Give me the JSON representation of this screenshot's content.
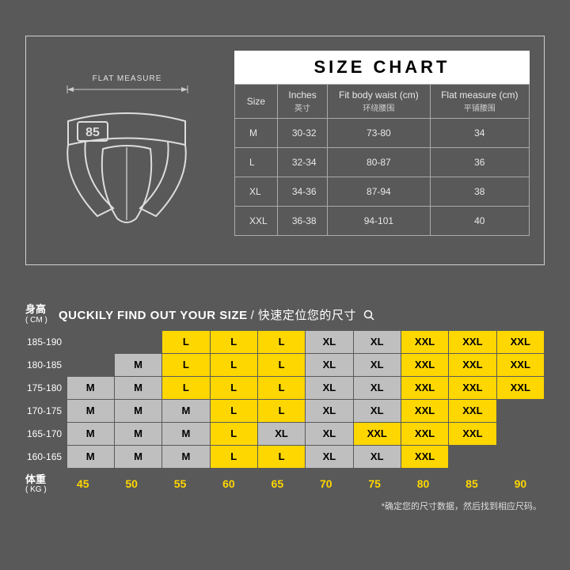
{
  "sizeChart": {
    "title": "SIZE CHART",
    "flatMeasureLabel": "FLAT  MEASURE",
    "productBadge": "85",
    "columns": [
      {
        "label": "Size",
        "sub": ""
      },
      {
        "label": "Inches",
        "sub": "英寸"
      },
      {
        "label": "Fit body waist (cm)",
        "sub": "环绕腰围"
      },
      {
        "label": "Flat measure (cm)",
        "sub": "平铺腰围"
      }
    ],
    "rows": [
      {
        "size": "M",
        "inches": "30-32",
        "waist": "73-80",
        "flat": "34"
      },
      {
        "size": "L",
        "inches": "32-34",
        "waist": "80-87",
        "flat": "36"
      },
      {
        "size": "XL",
        "inches": "34-36",
        "waist": "87-94",
        "flat": "38"
      },
      {
        "size": "XXL",
        "inches": "36-38",
        "waist": "94-101",
        "flat": "40"
      }
    ]
  },
  "finder": {
    "title": "QUCKILY FIND OUT YOUR SIZE",
    "titleZh": "/ 快速定位您的尺寸",
    "heightLabel": "身高",
    "heightUnit": "( CM )",
    "weightLabel": "体重",
    "weightUnit": "( KG )",
    "footnote": "*确定您的尺寸数据，然后找到相应尺码。",
    "heights": [
      "185-190",
      "180-185",
      "175-180",
      "170-175",
      "165-170",
      "160-165"
    ],
    "weights": [
      "45",
      "50",
      "55",
      "60",
      "65",
      "70",
      "75",
      "80",
      "85",
      "90"
    ],
    "colors": {
      "M": "#bfbfbf",
      "L": "#ffd700",
      "XL": "#bfbfbf",
      "XXL": "#ffd700",
      "weightColor": "#ffd700",
      "bg": "#595959"
    },
    "grid": [
      [
        "",
        "",
        "L",
        "L",
        "L",
        "XL",
        "XL",
        "XXL",
        "XXL",
        "XXL"
      ],
      [
        "",
        "M",
        "L",
        "L",
        "L",
        "XL",
        "XL",
        "XXL",
        "XXL",
        "XXL"
      ],
      [
        "M",
        "M",
        "L",
        "L",
        "L",
        "XL",
        "XL",
        "XXL",
        "XXL",
        "XXL"
      ],
      [
        "M",
        "M",
        "M",
        "L",
        "L",
        "XL",
        "XL",
        "XXL",
        "XXL",
        ""
      ],
      [
        "M",
        "M",
        "M",
        "L",
        "XL",
        "XL",
        "XXL",
        "XXL",
        "XXL",
        ""
      ],
      [
        "M",
        "M",
        "M",
        "L",
        "L",
        "XL",
        "XL",
        "XXL",
        "",
        ""
      ]
    ]
  }
}
